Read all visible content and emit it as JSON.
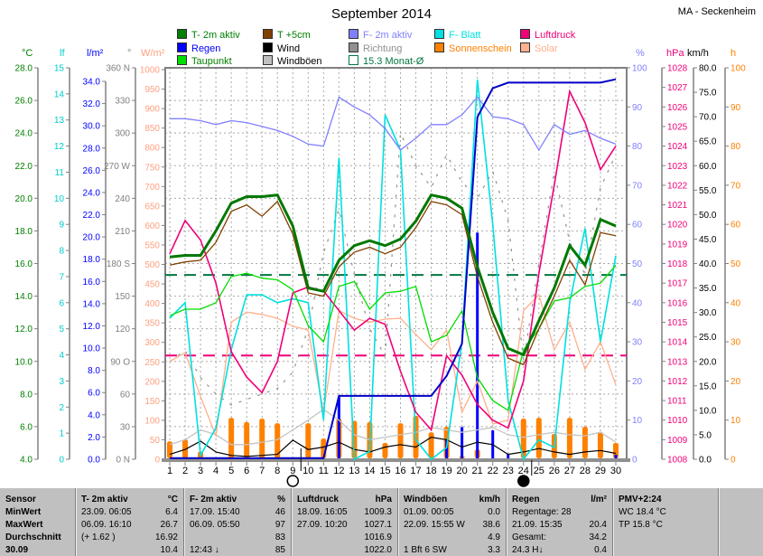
{
  "header": {
    "title": "September 2014",
    "station": "MA - Seckenheim"
  },
  "legend": {
    "items": [
      {
        "label": "T- 2m aktiv",
        "sq": "#008000",
        "txt": "#008000"
      },
      {
        "label": "T +5cm",
        "sq": "#804000",
        "txt": "#008000"
      },
      {
        "label": "F- 2m aktiv",
        "sq": "#8080FF",
        "txt": "#8080FF"
      },
      {
        "label": "F- Blatt",
        "sq": "#00E0E0",
        "txt": "#00E0E0"
      },
      {
        "label": "Luftdruck",
        "sq": "#F00078",
        "txt": "#F00078"
      },
      {
        "label": "Regen",
        "sq": "#0000FF",
        "txt": "#0000FF"
      },
      {
        "label": "Wind",
        "sq": "#000000",
        "txt": "#000000"
      },
      {
        "label": "Richtung",
        "sq": "#909090",
        "txt": "#909090"
      },
      {
        "label": "Sonnenschein",
        "sq": "#FF8000",
        "txt": "#FF8000"
      },
      {
        "label": "Solar",
        "sq": "#FFB08C",
        "txt": "#FFB08C"
      },
      {
        "label": "Taupunkt",
        "sq": "#00DD00",
        "txt": "#008000"
      },
      {
        "label": "Windböen",
        "sq": "#C0C0C0",
        "txt": "#000000"
      },
      {
        "label": "15.3 Monat-Ø",
        "sq": "#FFFFFF",
        "txt": "#007840",
        "outline": "#007840"
      }
    ]
  },
  "chart_data": {
    "type": "line",
    "title": "September 2014",
    "days": [
      1,
      2,
      3,
      4,
      5,
      6,
      7,
      8,
      9,
      10,
      11,
      12,
      13,
      14,
      15,
      16,
      17,
      18,
      19,
      20,
      21,
      22,
      23,
      24,
      25,
      26,
      27,
      28,
      29,
      30
    ],
    "axes": [
      {
        "id": "tempC",
        "header": "°C",
        "color": "#008000",
        "min": 4,
        "max": 28,
        "labels": [
          "28.0",
          "26.0",
          "24.0",
          "22.0",
          "20.0",
          "18.0",
          "16.0",
          "14.0",
          "12.0",
          "10.0",
          "8.0",
          "6.0",
          "4.0"
        ]
      },
      {
        "id": "lf",
        "header": "lf",
        "color": "#00CCCC",
        "min": 0,
        "max": 15,
        "labels": [
          "15",
          "14",
          "13",
          "12",
          "11",
          "10",
          "9",
          "8",
          "7",
          "6",
          "5",
          "4",
          "3",
          "2",
          "1",
          "0"
        ]
      },
      {
        "id": "lm2",
        "header": "l/m²",
        "color": "#0000FF",
        "min": 0,
        "max": 34,
        "labels": [
          "34.0",
          "32.0",
          "30.0",
          "28.0",
          "26.0",
          "24.0",
          "22.0",
          "20.0",
          "18.0",
          "16.0",
          "14.0",
          "12.0",
          "10.0",
          "8.0",
          "6.0",
          "4.0",
          "2.0",
          "0.0"
        ]
      },
      {
        "id": "deg",
        "header": "°",
        "color": "#808080",
        "min": 0,
        "max": 360,
        "labels": [
          "360 N",
          "330",
          "300",
          "270 W",
          "240",
          "210",
          "180 S",
          "150",
          "120",
          "90 O",
          "60",
          "30",
          "0 N"
        ]
      },
      {
        "id": "wm2",
        "header": "W/m²",
        "color": "#FFA080",
        "min": 0,
        "max": 1000,
        "labels": [
          "1000",
          "950",
          "900",
          "850",
          "800",
          "750",
          "700",
          "650",
          "600",
          "550",
          "500",
          "450",
          "400",
          "350",
          "300",
          "250",
          "200",
          "150",
          "100",
          "50",
          "0"
        ]
      },
      {
        "id": "pct",
        "header": "%",
        "color": "#8080FF",
        "min": 0,
        "max": 100,
        "labels": [
          "100",
          "90",
          "80",
          "70",
          "60",
          "50",
          "40",
          "30",
          "20",
          "10",
          "0"
        ]
      },
      {
        "id": "hpa",
        "header": "hPa",
        "color": "#F00078",
        "min": 1008,
        "max": 1028,
        "labels": [
          "1028",
          "1027",
          "1026",
          "1025",
          "1024",
          "1023",
          "1022",
          "1021",
          "1020",
          "1019",
          "1018",
          "1017",
          "1016",
          "1015",
          "1014",
          "1013",
          "1012",
          "1011",
          "1010",
          "1009",
          "1008"
        ]
      },
      {
        "id": "kmh",
        "header": "km/h",
        "color": "#000000",
        "min": 0,
        "max": 80,
        "labels": [
          "80.0",
          "75.0",
          "70.0",
          "65.0",
          "60.0",
          "55.0",
          "50.0",
          "45.0",
          "40.0",
          "35.0",
          "30.0",
          "25.0",
          "20.0",
          "15.0",
          "10.0",
          "5.0",
          "0.0"
        ]
      },
      {
        "id": "h",
        "header": "h",
        "color": "#FF8000",
        "min": 0,
        "max": 100,
        "labels": [
          "100",
          "90",
          "80",
          "70",
          "60",
          "50",
          "40",
          "30",
          "20",
          "10",
          "0"
        ]
      }
    ],
    "series": [
      {
        "name": "Richtung",
        "unit": "deg",
        "color": "#909090",
        "width": 1.2,
        "dash": "3 8",
        "values": [
          90,
          100,
          75,
          60,
          50,
          55,
          60,
          65,
          80,
          120,
          190,
          230,
          170,
          120,
          95,
          300,
          270,
          250,
          280,
          255,
          240,
          265,
          220,
          90,
          180,
          264,
          200,
          170,
          250,
          280
        ]
      },
      {
        "name": "Windböen",
        "unit": "kmh",
        "color": "#C4C4C4",
        "width": 1.3,
        "values": [
          3,
          4,
          6,
          5,
          3,
          3,
          3.5,
          4,
          6,
          8,
          10.2,
          8,
          5,
          4,
          4.5,
          5,
          5.5,
          6.5,
          6,
          5.5,
          6,
          6.5,
          5,
          4.5,
          5,
          5.5,
          5,
          4.8,
          5.5,
          3.5
        ]
      },
      {
        "name": "Solar",
        "unit": "wm2",
        "color": "#FFB08C",
        "width": 1.3,
        "values": [
          250,
          272,
          160,
          60,
          350,
          376,
          370,
          360,
          340,
          330,
          120,
          380,
          360,
          350,
          358,
          360,
          319,
          280,
          330,
          120,
          200,
          90,
          100,
          380,
          420,
          280,
          350,
          230,
          300,
          190
        ]
      },
      {
        "name": "Wind",
        "unit": "kmh",
        "color": "#000000",
        "width": 1.2,
        "values": [
          1.0,
          2.0,
          3.7,
          1.5,
          0.8,
          0.6,
          0.8,
          1.0,
          3.9,
          2.0,
          2.5,
          3.5,
          2.0,
          1.5,
          2.5,
          3.0,
          2.5,
          4.5,
          4.0,
          2.5,
          3.5,
          3.0,
          1.0,
          1.5,
          2.2,
          1.5,
          1.0,
          1.5,
          1.8,
          1.2
        ]
      },
      {
        "name": "F- Blatt",
        "unit": "pct",
        "color": "#00E0E0",
        "width": 1.6,
        "values": [
          36,
          40,
          1,
          8,
          28,
          42,
          42,
          40,
          41,
          40,
          10,
          77,
          0,
          2,
          88,
          79,
          5,
          0,
          3,
          30,
          97,
          60,
          15,
          0,
          5,
          3,
          40,
          59,
          30,
          52
        ]
      },
      {
        "name": "Luftdruck",
        "unit": "hpa",
        "color": "#F00078",
        "width": 1.6,
        "values": [
          1018.5,
          1020.2,
          1019.2,
          1017.0,
          1013.5,
          1012.2,
          1011.4,
          1013.0,
          1016.5,
          1016.8,
          1016.6,
          1015.6,
          1014.6,
          1015.2,
          1014.9,
          1012.5,
          1010.4,
          1009.5,
          1013.3,
          1012.3,
          1010.8,
          1010.0,
          1009.6,
          1012.0,
          1017.5,
          1022.0,
          1026.8,
          1025.2,
          1022.8,
          1024.0
        ]
      },
      {
        "name": "F- 2m aktiv",
        "unit": "pct",
        "color": "#8080FF",
        "width": 1.3,
        "values": [
          87,
          87,
          86.5,
          85.5,
          86.5,
          86,
          85,
          84,
          82.5,
          80.5,
          80,
          92.5,
          90,
          88,
          84.5,
          79,
          82,
          85.5,
          85.5,
          88,
          92.5,
          87.5,
          87,
          85.5,
          79,
          85.5,
          83,
          84,
          82,
          80.5
        ]
      },
      {
        "name": "Taupunkt",
        "unit": "C",
        "color": "#00DD00",
        "width": 1.3,
        "values": [
          12.8,
          13.2,
          13.2,
          13.6,
          15.2,
          15.4,
          15.1,
          15.0,
          14.4,
          12.2,
          11.2,
          14.6,
          14.9,
          13.2,
          14.2,
          14.3,
          14.6,
          11.2,
          11.6,
          13.1,
          9.0,
          7.6,
          7.0,
          10.7,
          12.0,
          13.7,
          13.9,
          14.6,
          14.8,
          15.9
        ]
      },
      {
        "name": "T +5cm",
        "unit": "C",
        "color": "#804000",
        "width": 1.3,
        "values": [
          15.9,
          16.1,
          16.2,
          17.3,
          19.2,
          19.6,
          18.9,
          19.8,
          17.8,
          14.2,
          14.0,
          15.8,
          16.7,
          17.0,
          16.6,
          17.0,
          18.2,
          19.8,
          19.6,
          19.0,
          15.2,
          12.4,
          10.2,
          9.8,
          12.0,
          14.0,
          16.2,
          14.7,
          17.9,
          17.7
        ]
      },
      {
        "name": "Regen kumuliert",
        "unit": "lm2",
        "color": "#0000C8",
        "width": 2,
        "values": [
          0.1,
          0.1,
          0.1,
          0.1,
          0.1,
          0.1,
          0.1,
          0.1,
          0.1,
          0.1,
          0.1,
          5.7,
          5.7,
          5.7,
          5.7,
          5.7,
          5.7,
          5.7,
          7.5,
          10.4,
          30.8,
          33.4,
          33.9,
          33.9,
          33.9,
          33.9,
          33.9,
          33.9,
          33.9,
          34.2
        ]
      },
      {
        "name": "T- 2m aktiv",
        "unit": "C",
        "color": "#007800",
        "width": 3,
        "values": [
          16.4,
          16.5,
          16.5,
          18.0,
          19.7,
          20.1,
          20.1,
          20.2,
          18.3,
          14.5,
          14.3,
          16.2,
          17.1,
          17.4,
          17.1,
          17.5,
          18.6,
          20.2,
          20.0,
          19.4,
          15.8,
          13.0,
          10.8,
          10.4,
          12.5,
          14.5,
          17.1,
          15.9,
          18.7,
          18.3
        ]
      }
    ],
    "bars": [
      {
        "name": "Sonnenschein",
        "unit": "h",
        "color": "#FF8000",
        "width": 6,
        "values": [
          4.6,
          5.1,
          2.0,
          0,
          10.6,
          9.5,
          10.4,
          9.2,
          0.5,
          9.2,
          5.3,
          10.4,
          9.8,
          9.5,
          4.2,
          9.2,
          11.1,
          6.9,
          8.3,
          0.8,
          2.5,
          0,
          0,
          10.4,
          10.6,
          6.5,
          10.6,
          8.3,
          7.0,
          4.2
        ]
      },
      {
        "name": "Regen",
        "unit": "lm2",
        "color": "#0000FF",
        "width": 3,
        "values": [
          0,
          0,
          0,
          0,
          0,
          0,
          0,
          0,
          0,
          0,
          0,
          5.6,
          0,
          0,
          0,
          0,
          0,
          0,
          1.8,
          2.9,
          20.4,
          2.6,
          0.5,
          0,
          0,
          0,
          0,
          0,
          0,
          0.4
        ]
      }
    ],
    "reference_lines": [
      {
        "label": "15.3 Monat-Ø",
        "unit": "C",
        "value": 15.3,
        "color": "#007840"
      },
      {
        "label": "Luftdruck-Mittel",
        "unit": "hpa",
        "value": 1013.3,
        "color": "#F00078"
      }
    ],
    "moon_markers": [
      {
        "day": 9,
        "phase": "open"
      },
      {
        "day": 24,
        "phase": "full"
      }
    ]
  },
  "table": {
    "sensor_col": [
      "Sensor",
      "MinWert",
      "MaxWert",
      "Durchschnitt",
      "30.09"
    ],
    "columns": [
      {
        "name": "T- 2m aktiv",
        "unit": "°C",
        "cells": [
          [
            "23.09.  06:05",
            "6.4"
          ],
          [
            "06.09.  16:10",
            "26.7"
          ],
          [
            "(+ 1.62 )",
            "16.92"
          ],
          [
            "",
            "10.4"
          ]
        ]
      },
      {
        "name": "F- 2m aktiv",
        "unit": "%",
        "cells": [
          [
            "17.09.  15:40",
            "46"
          ],
          [
            "06.09.  05:50",
            "97"
          ],
          [
            "",
            "83"
          ],
          [
            "12:43  ↓",
            "85"
          ]
        ]
      },
      {
        "name": "Luftdruck",
        "unit": "hPa",
        "cells": [
          [
            "18.09.  16:05",
            "1009.3"
          ],
          [
            "27.09.  10:20",
            "1027.1"
          ],
          [
            "",
            "1016.9"
          ],
          [
            "",
            "1022.0"
          ]
        ]
      },
      {
        "name": "Windböen",
        "unit": "km/h",
        "cells": [
          [
            "01.09.  00:05",
            "0.0"
          ],
          [
            "22.09.  15:55 W",
            "38.6"
          ],
          [
            "",
            "4.9"
          ],
          [
            "1 Bft 6 SW",
            "3.3"
          ]
        ]
      },
      {
        "name": "Regen",
        "unit": "l/m²",
        "cells": [
          [
            "Regentage: 28",
            ""
          ],
          [
            "21.09.  15:35",
            "20.4"
          ],
          [
            "Gesamt:",
            "34.2"
          ],
          [
            "24.3 H↓",
            "0.4"
          ]
        ]
      },
      {
        "name": "PMV+2:24",
        "unit": "",
        "cells": [
          [
            "WC 18.4 °C",
            ""
          ],
          [
            "TP 15.8 °C",
            ""
          ],
          [
            "",
            ""
          ],
          [
            "",
            ""
          ]
        ]
      }
    ]
  }
}
